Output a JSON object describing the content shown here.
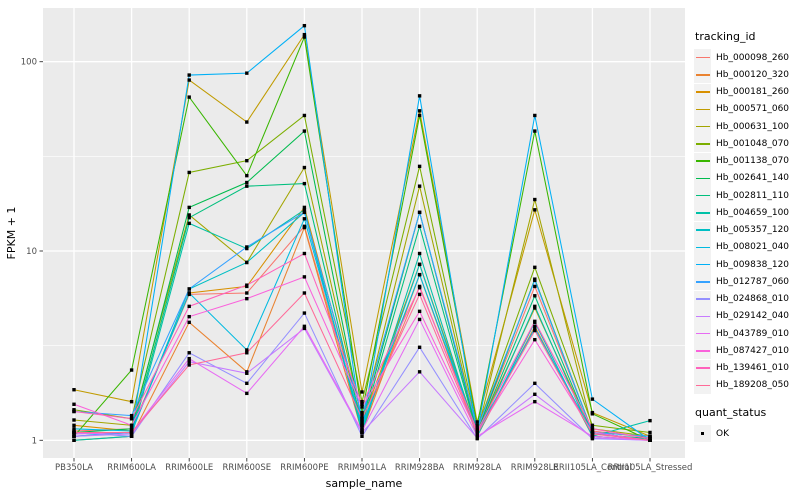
{
  "chart_data": {
    "type": "line",
    "title": "",
    "xlabel": "sample_name",
    "ylabel": "FPKM + 1",
    "y_scale": "log10",
    "ylim": [
      0.82,
      185
    ],
    "y_ticks": [
      1,
      10,
      100
    ],
    "y_minor_ticks": [
      3.1623,
      31.623
    ],
    "grid": true,
    "legend_position": "right",
    "point_shape": "black-square",
    "categories": [
      "PB350LA",
      "RRIM600LA",
      "RRIM600LE",
      "RRIM600SE",
      "RRIM600PE",
      "RRIM901LA",
      "RRIM928BA",
      "RRIM928LA",
      "RRIM928LE",
      "RRII105LA_Control",
      "RRII105LA_Stressed"
    ],
    "series": [
      {
        "name": "Hb_000098_260",
        "color": "#F8766D",
        "values": [
          1.12,
          1.15,
          5.9,
          6.0,
          13.5,
          1.2,
          6.5,
          1.1,
          6.5,
          1.12,
          1.03
        ]
      },
      {
        "name": "Hb_000120_320",
        "color": "#EA8331",
        "values": [
          1.0,
          1.05,
          4.2,
          2.3,
          13.3,
          1.1,
          7.5,
          1.05,
          4.0,
          1.05,
          1.0
        ]
      },
      {
        "name": "Hb_000181_260",
        "color": "#D89000",
        "values": [
          1.2,
          1.12,
          6.0,
          6.5,
          17.0,
          1.25,
          8.5,
          1.1,
          5.0,
          1.1,
          1.0
        ]
      },
      {
        "name": "Hb_000571_060",
        "color": "#C09B00",
        "values": [
          1.85,
          1.6,
          80,
          48,
          139,
          1.8,
          55,
          1.25,
          16.5,
          1.4,
          1.05
        ]
      },
      {
        "name": "Hb_000631_100",
        "color": "#A3A500",
        "values": [
          1.28,
          1.2,
          15.5,
          8.7,
          27.6,
          1.3,
          22,
          1.1,
          18.7,
          1.15,
          1.05
        ]
      },
      {
        "name": "Hb_001048_070",
        "color": "#7CAE00",
        "values": [
          1.45,
          1.3,
          26,
          30,
          52,
          1.6,
          28,
          1.15,
          8.2,
          1.2,
          1.1
        ]
      },
      {
        "name": "Hb_001138_070",
        "color": "#39B600",
        "values": [
          1.05,
          2.35,
          65,
          25,
          135,
          1.4,
          52,
          1.2,
          43,
          1.38,
          1.0
        ]
      },
      {
        "name": "Hb_002641_140",
        "color": "#00BB4E",
        "values": [
          1.1,
          1.15,
          17,
          23,
          43,
          1.25,
          16,
          1.1,
          7.1,
          1.1,
          1.0
        ]
      },
      {
        "name": "Hb_002811_110",
        "color": "#00BF7D",
        "values": [
          1.05,
          1.1,
          15,
          22,
          22.7,
          1.2,
          13.5,
          1.08,
          5.8,
          1.08,
          1.02
        ]
      },
      {
        "name": "Hb_004659_100",
        "color": "#00C1A7",
        "values": [
          1.0,
          1.05,
          14,
          10.3,
          16.5,
          1.1,
          9.7,
          1.05,
          5.1,
          1.05,
          1.27
        ]
      },
      {
        "name": "Hb_005357_120",
        "color": "#00BFC4",
        "values": [
          1.1,
          1.1,
          6.3,
          8.7,
          16.0,
          1.15,
          8.5,
          1.05,
          4.2,
          1.05,
          1.0
        ]
      },
      {
        "name": "Hb_008021_040",
        "color": "#00BAE0",
        "values": [
          1.15,
          1.12,
          6.0,
          3.0,
          14.8,
          1.2,
          7.5,
          1.1,
          3.9,
          1.1,
          1.0
        ]
      },
      {
        "name": "Hb_009838_120",
        "color": "#00B0F6",
        "values": [
          1.05,
          1.1,
          85,
          87,
          155,
          1.15,
          66,
          1.1,
          52,
          1.65,
          1.0
        ]
      },
      {
        "name": "Hb_012787_060",
        "color": "#35A2FF",
        "values": [
          1.42,
          1.35,
          6.3,
          10.5,
          16.0,
          1.35,
          16,
          1.15,
          7.0,
          1.1,
          1.05
        ]
      },
      {
        "name": "Hb_024868_010",
        "color": "#9590FF",
        "values": [
          1.1,
          1.05,
          2.9,
          2.0,
          4.7,
          1.05,
          3.1,
          1.02,
          2.0,
          1.02,
          1.0
        ]
      },
      {
        "name": "Hb_029142_040",
        "color": "#C77CFF",
        "values": [
          1.05,
          1.08,
          2.6,
          2.26,
          3.9,
          1.1,
          2.3,
          1.03,
          1.75,
          1.03,
          1.0
        ]
      },
      {
        "name": "Hb_043789_010",
        "color": "#E76BF3",
        "values": [
          1.08,
          1.1,
          2.7,
          1.77,
          4.0,
          1.12,
          4.35,
          1.05,
          1.6,
          1.05,
          1.0
        ]
      },
      {
        "name": "Hb_087427_010",
        "color": "#FA62DB",
        "values": [
          1.55,
          1.2,
          4.5,
          5.6,
          7.3,
          1.5,
          4.8,
          1.1,
          3.4,
          1.1,
          1.0
        ]
      },
      {
        "name": "Hb_139461_010",
        "color": "#FF62BC",
        "values": [
          1.42,
          1.3,
          5.1,
          6.6,
          9.7,
          1.55,
          6.4,
          1.12,
          4.25,
          1.15,
          1.02
        ]
      },
      {
        "name": "Hb_189208_050",
        "color": "#FF6A98",
        "values": [
          1.1,
          1.1,
          2.5,
          2.9,
          6.0,
          1.3,
          5.9,
          1.08,
          3.8,
          1.08,
          1.0
        ]
      }
    ]
  },
  "legend": {
    "tracking_title": "tracking_id",
    "quant_title": "quant_status",
    "quant_items": [
      {
        "label": "OK",
        "symbol": "black-square"
      }
    ]
  },
  "colors": {
    "panel_bg": "#EBEBEB",
    "grid": "#FFFFFF",
    "axis_text": "#4D4D4D",
    "tick_mark": "#333333",
    "point": "#000000",
    "legend_key_bg": "#F2F2F2"
  }
}
